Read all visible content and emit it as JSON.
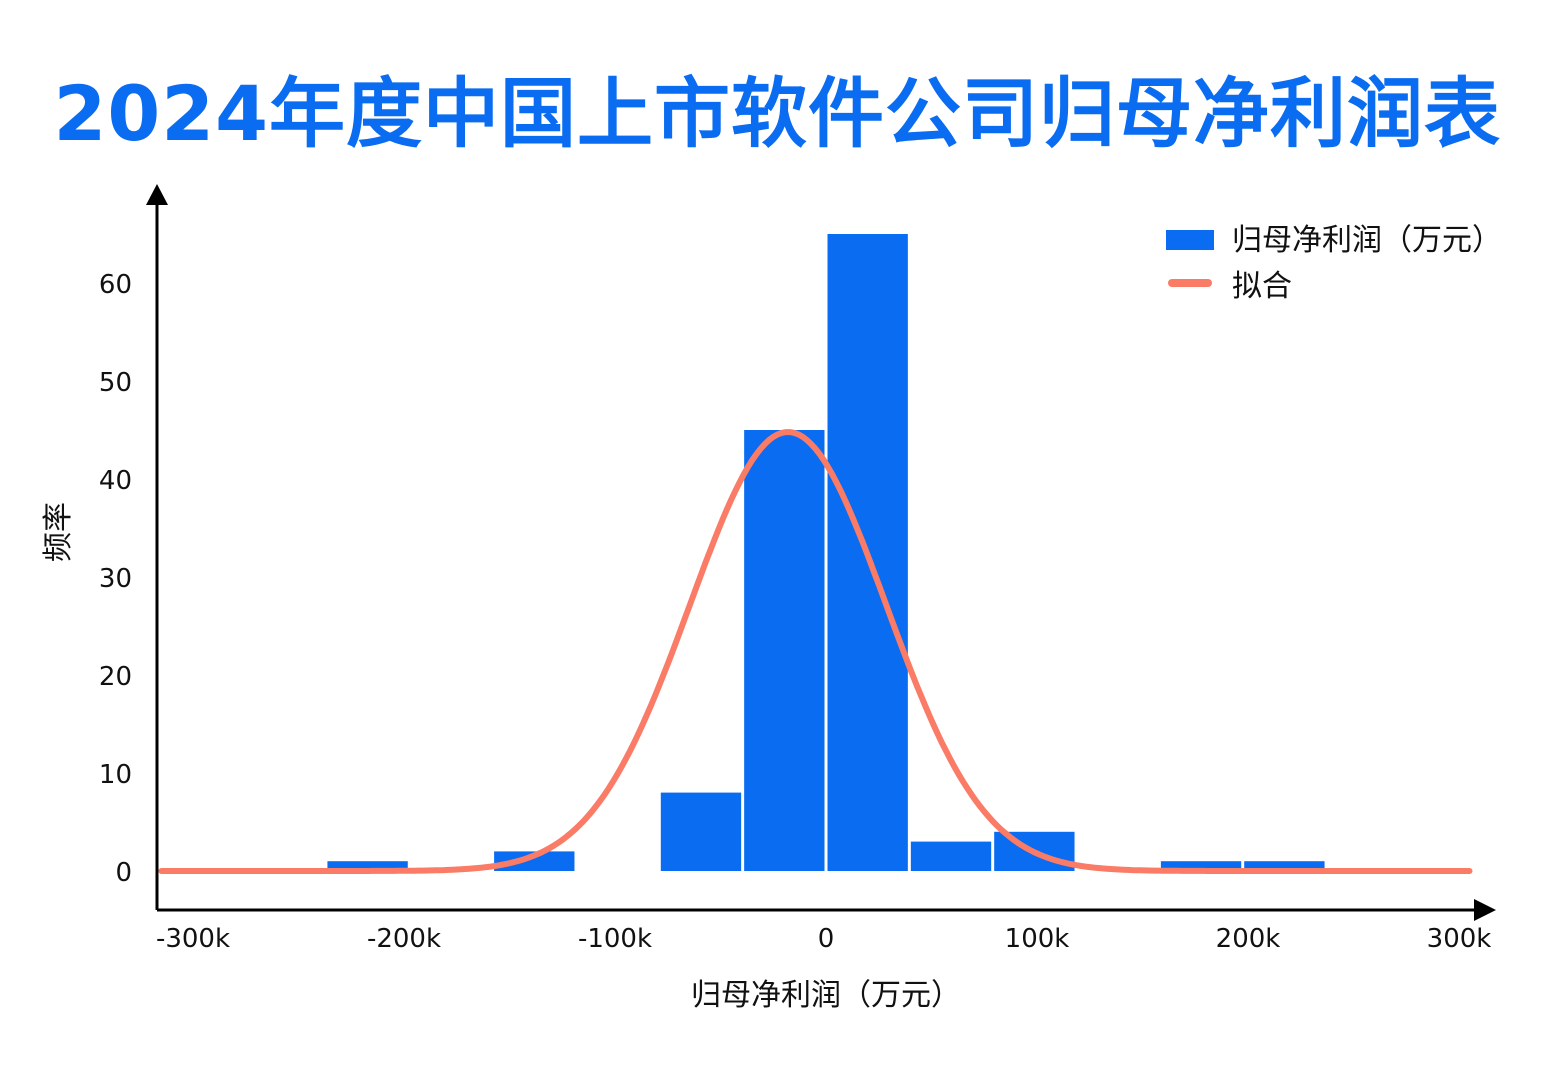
{
  "chart_data": {
    "type": "bar",
    "title": "2024年度中国上市软件公司归母净利润表",
    "xlabel": "归母净利润（万元）",
    "ylabel": "频率",
    "xlim": [
      -320,
      315
    ],
    "ylim": [
      -4,
      69
    ],
    "x_unit": "k",
    "x_ticks": [
      -300,
      -200,
      -100,
      0,
      100,
      200,
      300
    ],
    "x_tick_labels": [
      "-300k",
      "-200k",
      "-100k",
      "0",
      "100k",
      "200k",
      "300k"
    ],
    "y_ticks": [
      0,
      10,
      20,
      30,
      40,
      50,
      60
    ],
    "y_tick_labels": [
      "0",
      "10",
      "20",
      "30",
      "40",
      "50",
      "60"
    ],
    "bin_edges": [
      -237,
      -197.5,
      -158,
      -118.5,
      -79,
      -39.5,
      0,
      39.5,
      79,
      118.5,
      158,
      197.5,
      237
    ],
    "counts": [
      1,
      0,
      2,
      0,
      8,
      45,
      65,
      3,
      4,
      0,
      1,
      1
    ],
    "fit": {
      "type": "normal",
      "mean": -18,
      "std": 46.5,
      "peak": 44.8
    },
    "legend": {
      "position": "top-right",
      "entries": [
        "归母净利润（万元）",
        "拟合"
      ]
    },
    "colors": {
      "bars": "#0a6cf0",
      "fit": "#fa7b66",
      "title": "#0a6cf0"
    },
    "grid": false
  }
}
